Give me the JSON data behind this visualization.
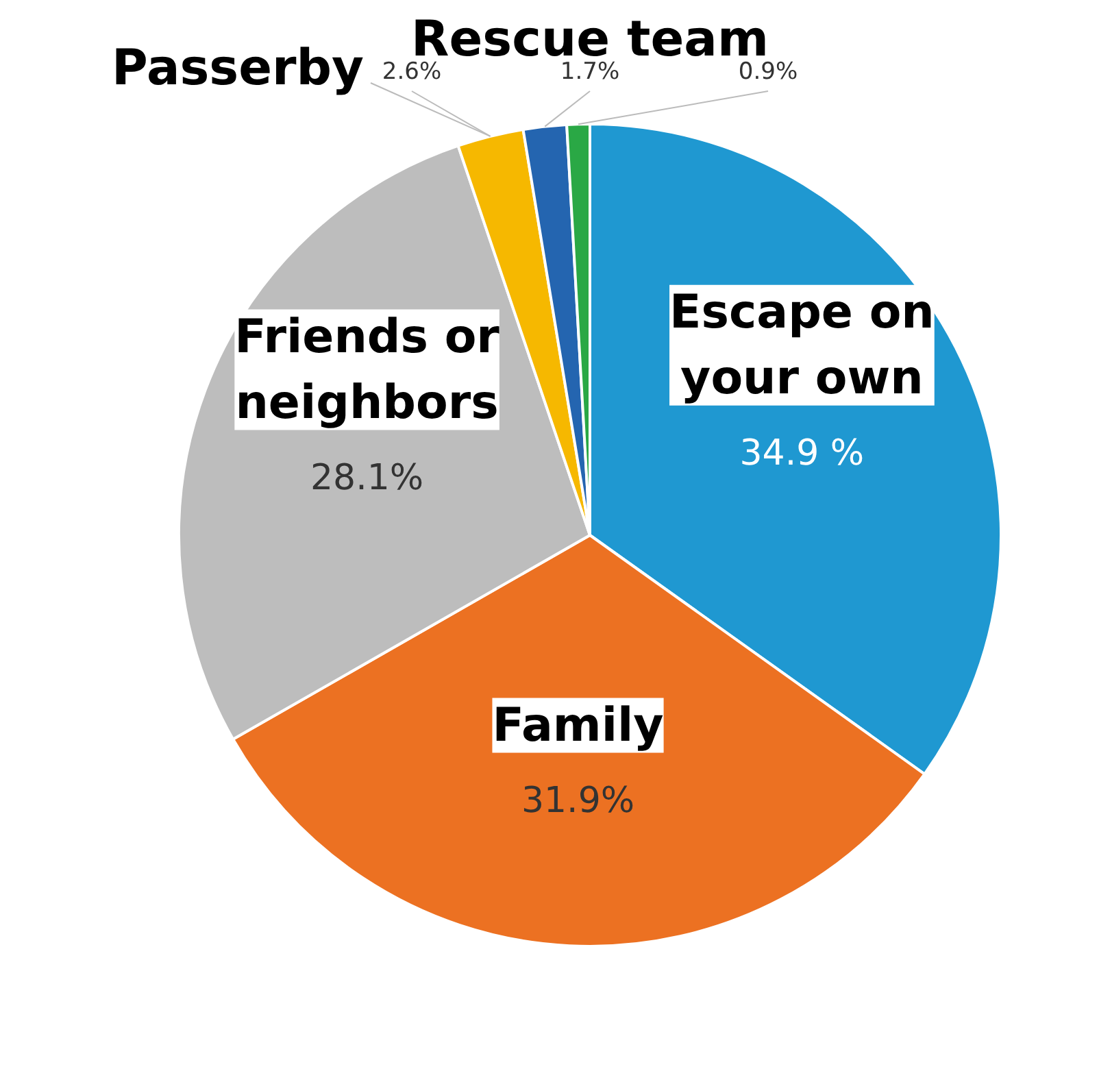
{
  "chart_data": {
    "type": "pie",
    "categories": [
      "Escape on your own",
      "Family",
      "Friends or neighbors",
      "Passerby",
      "Rescue team",
      null
    ],
    "values": [
      34.9,
      31.9,
      28.1,
      2.6,
      1.7,
      0.9
    ],
    "colors": [
      "#1f98d1",
      "#ec7122",
      "#bdbdbd",
      "#f6b800",
      "#2465b0",
      "#2aa845"
    ],
    "value_labels": [
      "34.9 %",
      "31.9%",
      "28.1%",
      "2.6%",
      "1.7%",
      "0.9%"
    ]
  }
}
